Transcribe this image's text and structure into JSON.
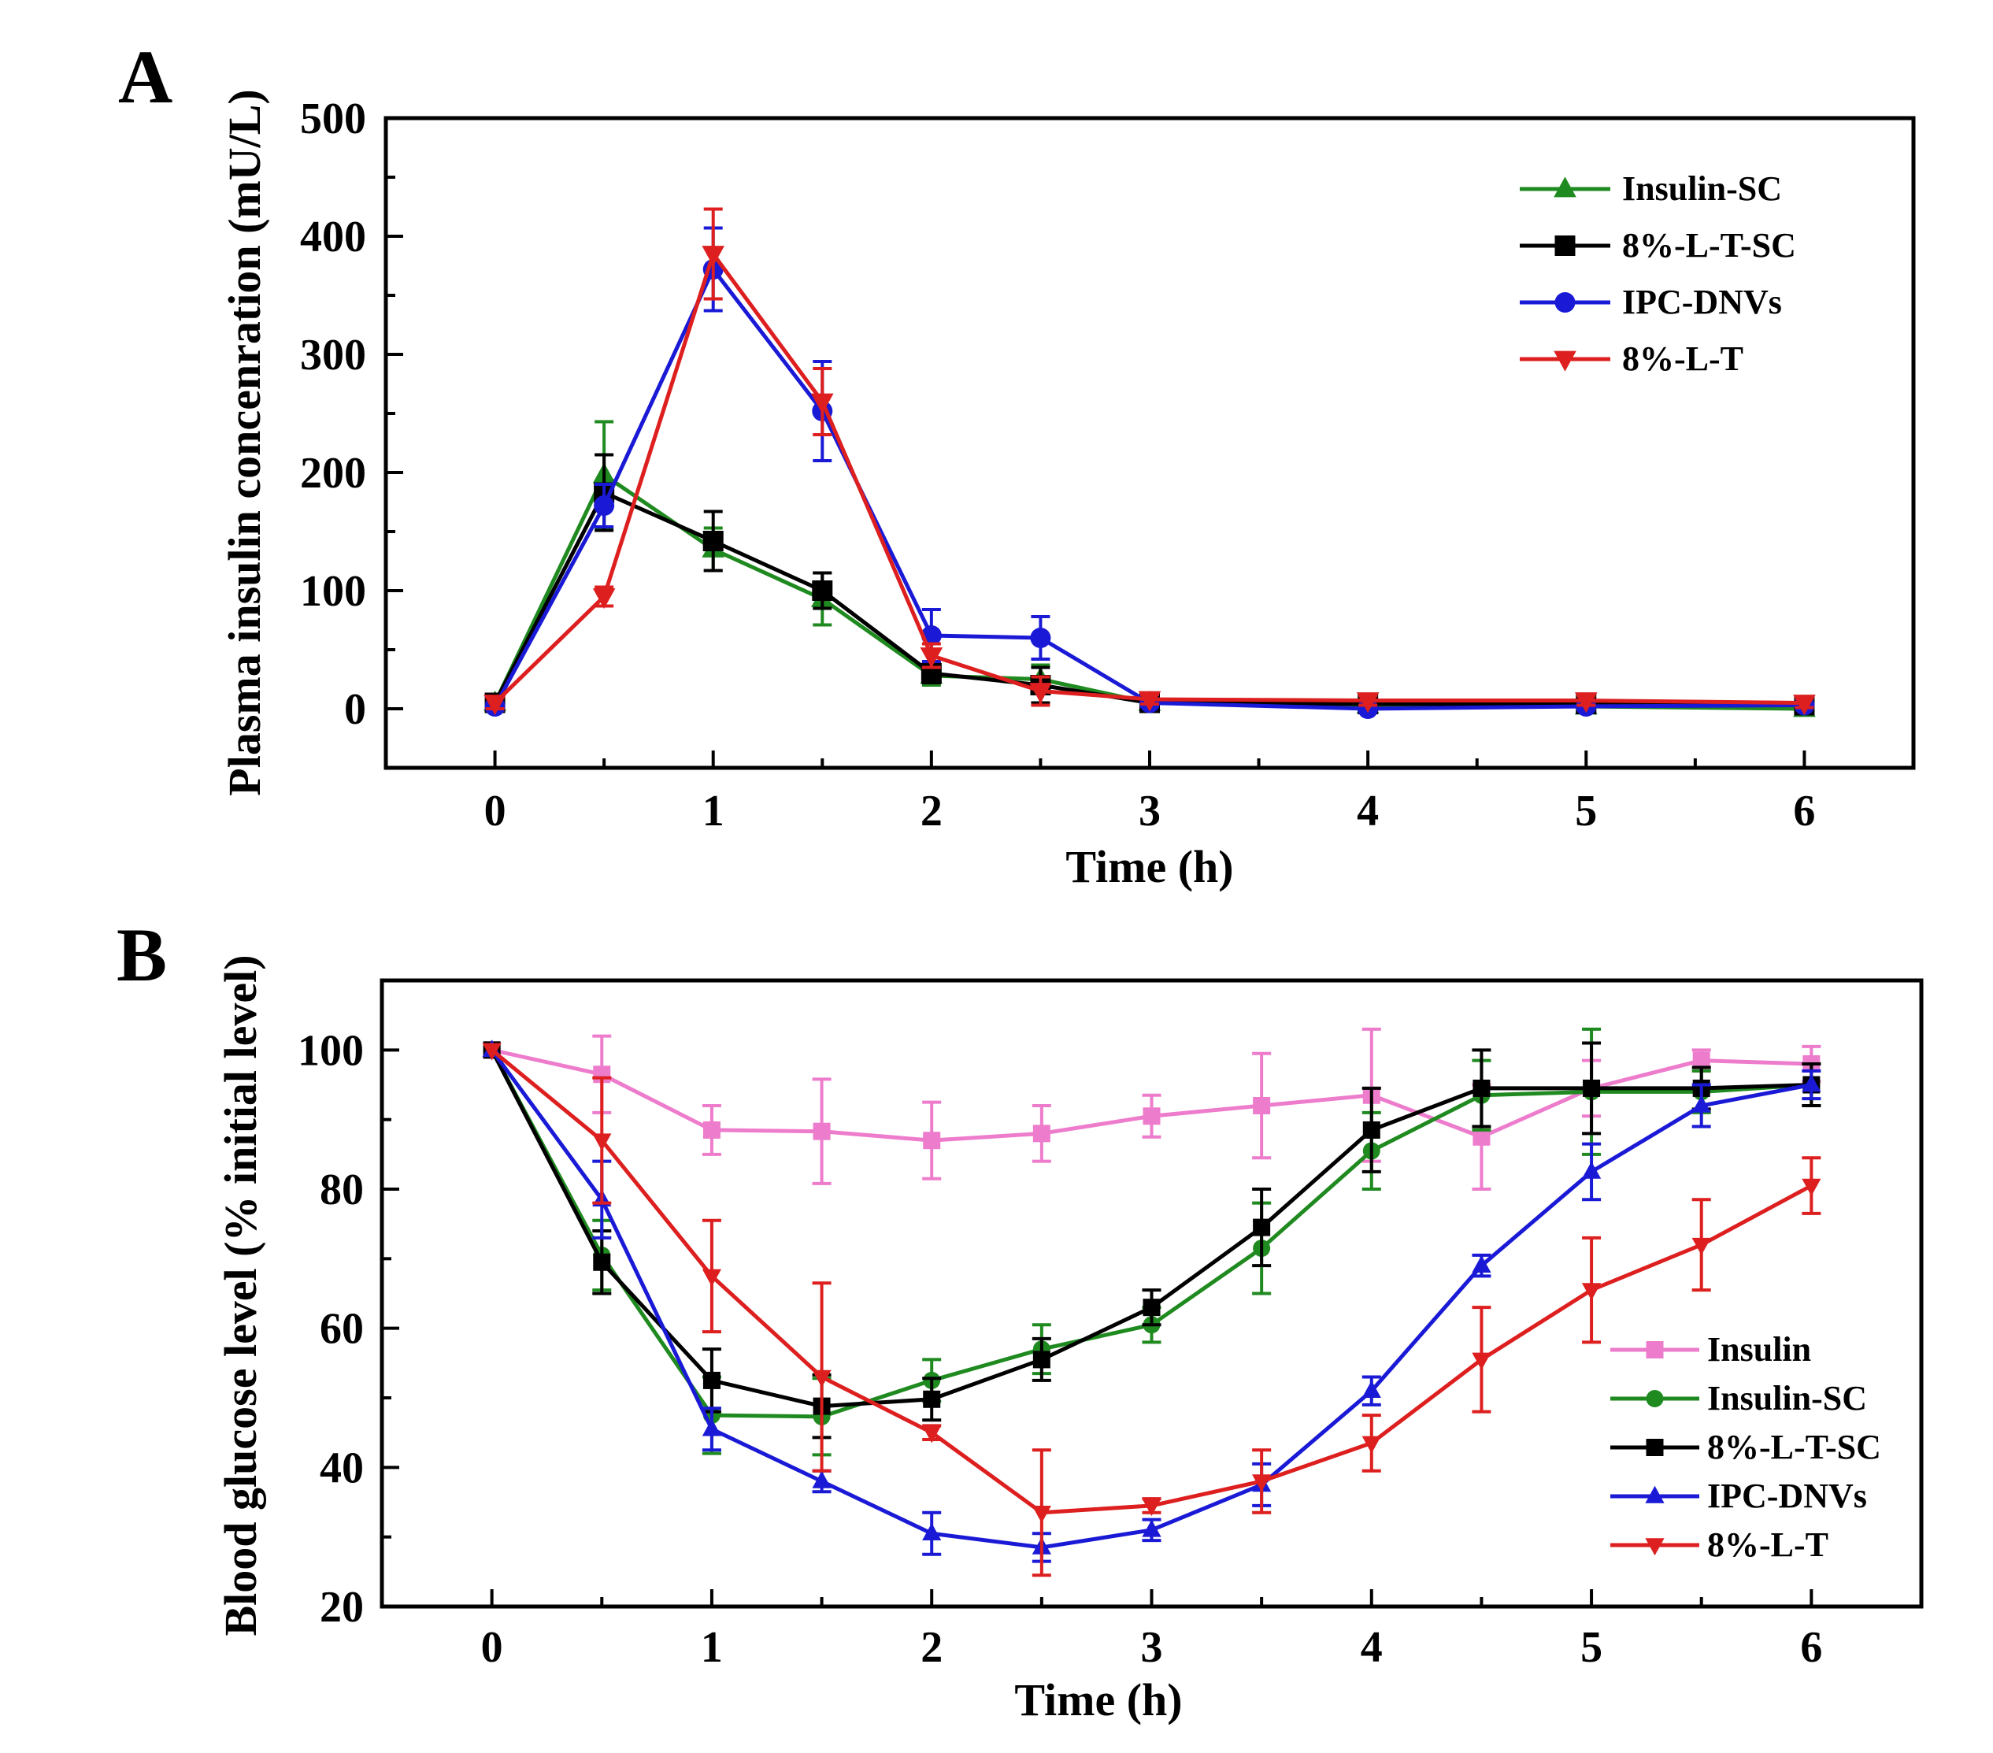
{
  "chart_data": [
    {
      "panel": "A",
      "type": "line",
      "xlabel": "Time (h)",
      "ylabel": "Plasma insulin concenration (mU/L)",
      "xlim": [
        -0.5,
        6.5
      ],
      "ylim": [
        -50,
        500
      ],
      "xticks": [
        "0",
        "1",
        "2",
        "3",
        "4",
        "5",
        "6"
      ],
      "yticks": [
        "0",
        "100",
        "200",
        "300",
        "400",
        "500"
      ],
      "legend_position": "top-right",
      "series": [
        {
          "name": "Insulin-SC",
          "color": "#1f8a1f",
          "marker": "triangle-up",
          "x": [
            0,
            0.5,
            1,
            1.5,
            2,
            2.5,
            3,
            4,
            5,
            6
          ],
          "y": [
            5,
            198,
            135,
            93,
            28,
            25,
            5,
            3,
            2,
            0
          ],
          "err": [
            5,
            45,
            18,
            22,
            8,
            12,
            3,
            2,
            2,
            2
          ]
        },
        {
          "name": "8%-L-T-SC",
          "color": "#000000",
          "marker": "square",
          "x": [
            0,
            0.5,
            1,
            1.5,
            2,
            2.5,
            3,
            4,
            5,
            6
          ],
          "y": [
            5,
            183,
            142,
            100,
            30,
            20,
            5,
            4,
            4,
            3
          ],
          "err": [
            5,
            32,
            25,
            15,
            8,
            15,
            3,
            2,
            2,
            2
          ]
        },
        {
          "name": "IPC-DNVs",
          "color": "#1a1ad6",
          "marker": "circle",
          "x": [
            0,
            0.5,
            1,
            1.5,
            2,
            2.5,
            3,
            4,
            5,
            6
          ],
          "y": [
            2,
            172,
            372,
            252,
            62,
            60,
            5,
            0,
            2,
            3
          ],
          "err": [
            3,
            18,
            35,
            42,
            22,
            18,
            3,
            2,
            2,
            2
          ]
        },
        {
          "name": "8%-L-T",
          "color": "#dd1f1f",
          "marker": "triangle-down",
          "x": [
            0,
            0.5,
            1,
            1.5,
            2,
            2.5,
            3,
            4,
            5,
            6
          ],
          "y": [
            5,
            95,
            385,
            260,
            45,
            15,
            8,
            7,
            7,
            5
          ],
          "err": [
            5,
            8,
            38,
            28,
            10,
            12,
            4,
            4,
            4,
            4
          ]
        }
      ]
    },
    {
      "panel": "B",
      "type": "line",
      "xlabel": "Time (h)",
      "ylabel": "Blood glucose level (% initial level)",
      "xlim": [
        -0.5,
        6.5
      ],
      "ylim": [
        20,
        110
      ],
      "xticks": [
        "0",
        "1",
        "2",
        "3",
        "4",
        "5",
        "6"
      ],
      "yticks": [
        "20",
        "40",
        "60",
        "80",
        "100"
      ],
      "legend_position": "bottom-right",
      "series": [
        {
          "name": "Insulin",
          "color": "#ee7ccc",
          "marker": "square",
          "x": [
            0,
            0.5,
            1,
            1.5,
            2,
            2.5,
            3,
            3.5,
            4,
            4.5,
            5,
            5.5,
            6
          ],
          "y": [
            100,
            96.5,
            88.5,
            88.3,
            87,
            88,
            90.5,
            92,
            93.5,
            87.5,
            94.5,
            98.5,
            98
          ],
          "err": [
            0,
            5.5,
            3.5,
            7.5,
            5.5,
            4,
            3,
            7.5,
            9.5,
            7.5,
            4,
            1.5,
            2.5
          ]
        },
        {
          "name": "Insulin-SC",
          "color": "#1f8a1f",
          "marker": "circle",
          "x": [
            0,
            0.5,
            1,
            1.5,
            2,
            2.5,
            3,
            3.5,
            4,
            4.5,
            5,
            5.5,
            6
          ],
          "y": [
            100,
            70.5,
            47.5,
            47.3,
            52.5,
            57,
            60.5,
            71.5,
            85.5,
            93.5,
            94,
            94,
            95
          ],
          "err": [
            0,
            5,
            5.5,
            5.5,
            3,
            3.5,
            2.5,
            6.5,
            5.5,
            5,
            9,
            3,
            3
          ]
        },
        {
          "name": "8%-L-T-SC",
          "color": "#000000",
          "marker": "square",
          "x": [
            0,
            0.5,
            1,
            1.5,
            2,
            2.5,
            3,
            3.5,
            4,
            4.5,
            5,
            5.5,
            6
          ],
          "y": [
            100,
            69.5,
            52.5,
            48.8,
            49.8,
            55.5,
            63,
            74.5,
            88.5,
            94.5,
            94.5,
            94.5,
            95
          ],
          "err": [
            0,
            4.5,
            4.5,
            4.5,
            3,
            3,
            2.5,
            5.5,
            6,
            5.5,
            6.5,
            3,
            3
          ]
        },
        {
          "name": "IPC-DNVs",
          "color": "#1a1ad6",
          "marker": "triangle-up",
          "x": [
            0,
            0.5,
            1,
            1.5,
            2,
            2.5,
            3,
            3.5,
            4,
            4.5,
            5,
            5.5,
            6
          ],
          "y": [
            100,
            78.5,
            45.5,
            38,
            30.5,
            28.5,
            31,
            37.5,
            51,
            69,
            82.5,
            92,
            95
          ],
          "err": [
            0,
            5.5,
            3,
            1.5,
            3,
            2,
            1.5,
            3,
            2,
            1.5,
            4,
            3,
            2
          ]
        },
        {
          "name": "8%-L-T",
          "color": "#dd1f1f",
          "marker": "triangle-down",
          "x": [
            0,
            0.5,
            1,
            1.5,
            2,
            2.5,
            3,
            3.5,
            4,
            4.5,
            5,
            5.5,
            6
          ],
          "y": [
            100,
            87,
            67.5,
            53,
            45,
            33.5,
            34.5,
            38,
            43.5,
            55.5,
            65.5,
            72,
            80.5
          ],
          "err": [
            0,
            9,
            8,
            13.5,
            1,
            9,
            1,
            4.5,
            4,
            7.5,
            7.5,
            6.5,
            4
          ]
        }
      ]
    }
  ]
}
